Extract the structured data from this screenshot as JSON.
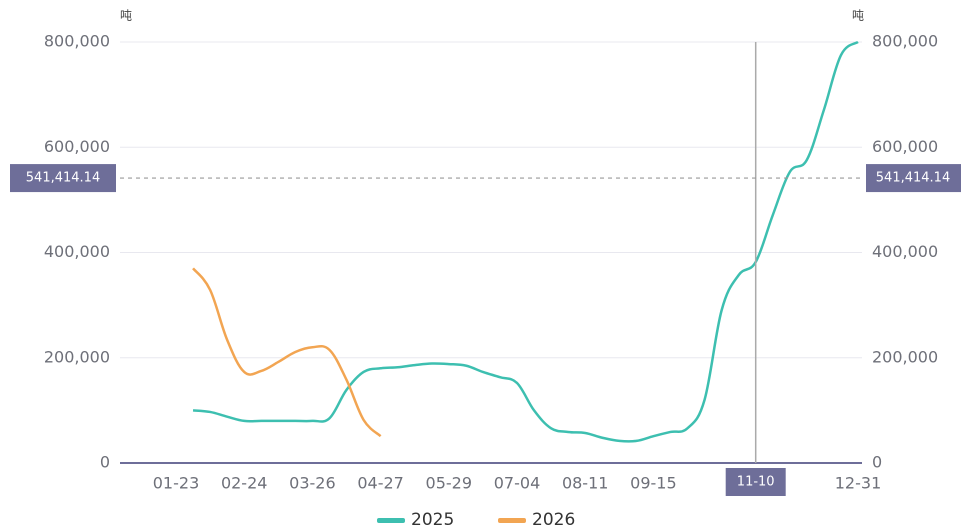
{
  "chart_data": {
    "type": "line",
    "y_unit": "吨",
    "categories": [
      "01-23",
      null,
      null,
      null,
      "02-24",
      null,
      null,
      null,
      "03-26",
      null,
      null,
      null,
      "04-27",
      null,
      null,
      null,
      "05-29",
      null,
      null,
      null,
      "07-04",
      null,
      null,
      null,
      "08-11",
      null,
      null,
      null,
      "09-15",
      null,
      null,
      null,
      null,
      null,
      "11-10",
      null,
      null,
      null,
      null,
      null,
      "12-31"
    ],
    "series": [
      {
        "name": "2025",
        "color": "#3dbfb0",
        "values": [
          null,
          100000,
          97000,
          88000,
          80000,
          80000,
          80000,
          80000,
          80000,
          85000,
          139000,
          173000,
          180000,
          182000,
          186000,
          189000,
          188000,
          185000,
          173000,
          163000,
          152000,
          100000,
          66000,
          59000,
          57000,
          48000,
          42000,
          42000,
          51000,
          59000,
          66000,
          120000,
          290000,
          357000,
          382000,
          471000,
          553000,
          576000,
          671000,
          775000,
          800000
        ]
      },
      {
        "name": "2026",
        "color": "#f2a552",
        "values": [
          null,
          370000,
          329000,
          234000,
          173000,
          175000,
          192000,
          211000,
          220000,
          215000,
          158000,
          82000,
          51000,
          null,
          null,
          null,
          null,
          null,
          null,
          null,
          null,
          null,
          null,
          null,
          null,
          null,
          null,
          null,
          null,
          null,
          null,
          null,
          null,
          null,
          null,
          null,
          null,
          null,
          null,
          null,
          null
        ]
      }
    ],
    "ylim": [
      0,
      800000
    ],
    "yticks": [
      0,
      {
        "value": 200000,
        "label": "200,000"
      },
      {
        "value": 400000,
        "label": "400,000"
      },
      {
        "value": 600000,
        "label": "600,000"
      },
      {
        "value": 800000,
        "label": "800,000"
      }
    ],
    "grid": true,
    "crosshair": {
      "x": "11-10",
      "y": 541414.14,
      "y_label": "541,414.14"
    }
  }
}
